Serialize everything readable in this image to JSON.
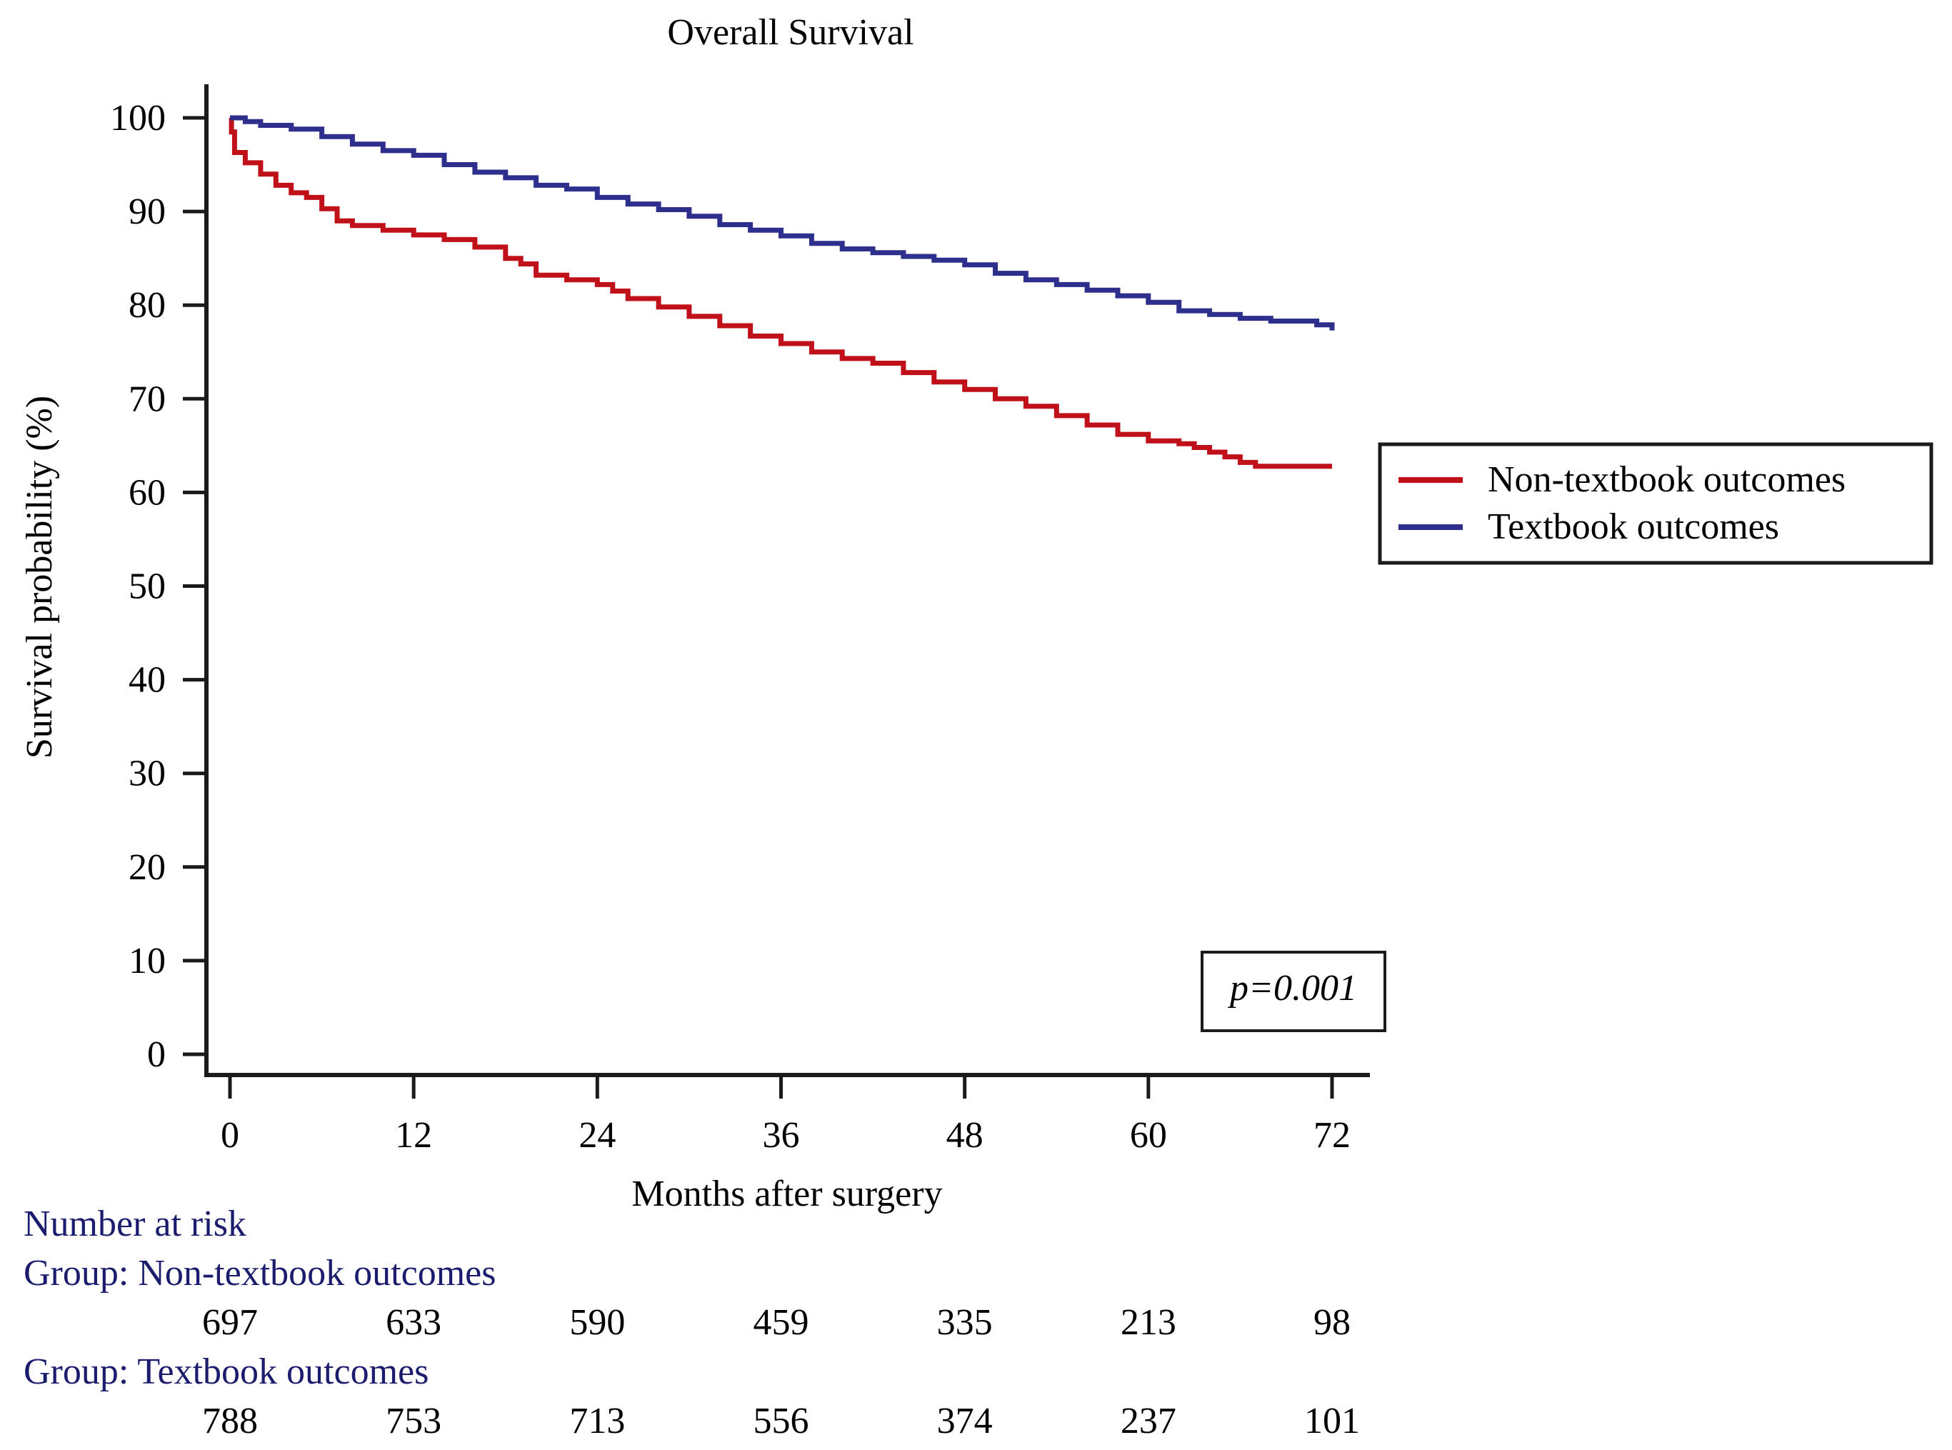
{
  "chart_data": {
    "type": "line",
    "step": true,
    "title": "Overall Survival",
    "xlabel": "Months after surgery",
    "ylabel": "Survival probability (%)",
    "xlim": [
      0,
      72
    ],
    "ylim": [
      0,
      100
    ],
    "xticks": [
      0,
      12,
      24,
      36,
      48,
      60,
      72
    ],
    "yticks": [
      0,
      10,
      20,
      30,
      40,
      50,
      60,
      70,
      80,
      90,
      100
    ],
    "grid": false,
    "legend_position": "right",
    "annotation": "p=0.001",
    "series": [
      {
        "name": "Non-textbook outcomes",
        "color": "#c0111a",
        "x": [
          0,
          0.1,
          0.3,
          1,
          2,
          3,
          4,
          5,
          6,
          7,
          8,
          10,
          12,
          14,
          16,
          18,
          19,
          20,
          22,
          24,
          25,
          26,
          28,
          30,
          32,
          34,
          36,
          38,
          40,
          42,
          44,
          46,
          48,
          50,
          52,
          54,
          56,
          58,
          60,
          62,
          63,
          64,
          65,
          66,
          67,
          68,
          72
        ],
        "y": [
          100,
          98.5,
          96.3,
          95.2,
          94,
          92.8,
          92,
          91.5,
          90.3,
          89,
          88.5,
          88,
          87.5,
          87,
          86.2,
          85,
          84.4,
          83.2,
          82.7,
          82.2,
          81.5,
          80.7,
          79.8,
          78.8,
          77.8,
          76.7,
          75.9,
          75,
          74.3,
          73.8,
          72.8,
          71.8,
          71,
          70,
          69.2,
          68.2,
          67.2,
          66.2,
          65.5,
          65.2,
          64.8,
          64.3,
          63.8,
          63.2,
          62.8,
          62.8,
          62.8
        ]
      },
      {
        "name": "Textbook outcomes",
        "color": "#2e2e8c",
        "x": [
          0,
          1,
          2,
          4,
          6,
          8,
          10,
          12,
          14,
          16,
          18,
          20,
          22,
          24,
          26,
          28,
          30,
          32,
          34,
          36,
          38,
          40,
          42,
          44,
          46,
          48,
          50,
          52,
          54,
          56,
          58,
          60,
          62,
          64,
          66,
          68,
          70,
          71,
          72
        ],
        "y": [
          100,
          99.6,
          99.2,
          98.8,
          98,
          97.2,
          96.5,
          96,
          95,
          94.2,
          93.6,
          92.8,
          92.4,
          91.5,
          90.8,
          90.2,
          89.5,
          88.6,
          88,
          87.4,
          86.6,
          86,
          85.6,
          85.2,
          84.8,
          84.3,
          83.4,
          82.7,
          82.2,
          81.6,
          81,
          80.3,
          79.4,
          79,
          78.6,
          78.3,
          78.3,
          77.9,
          77.3
        ]
      }
    ],
    "risk_table": {
      "heading": "Number at risk",
      "times": [
        0,
        12,
        24,
        36,
        48,
        60,
        72
      ],
      "groups": [
        {
          "label": "Group: Non-textbook outcomes",
          "counts": [
            697,
            633,
            590,
            459,
            335,
            213,
            98
          ]
        },
        {
          "label": "Group: Textbook outcomes",
          "counts": [
            788,
            753,
            713,
            556,
            374,
            237,
            101
          ]
        }
      ]
    }
  }
}
